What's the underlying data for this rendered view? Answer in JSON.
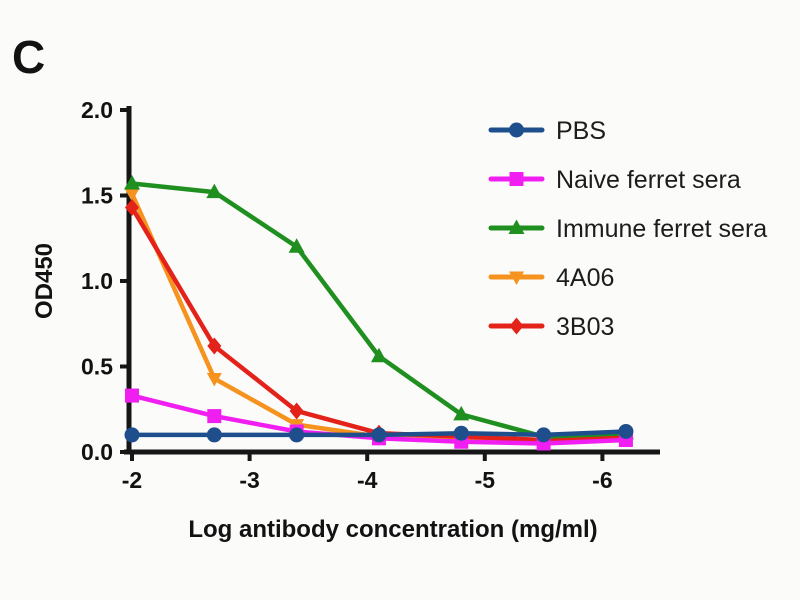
{
  "panel_label": "C",
  "colors": {
    "background": "#fbfbfa",
    "axis": "#161616",
    "text": "#121212"
  },
  "chart_data": {
    "type": "line",
    "title": "",
    "xlabel": "Log antibody concentration (mg/ml)",
    "ylabel": "OD450",
    "x": [
      -2.0,
      -2.7,
      -3.4,
      -4.1,
      -4.8,
      -5.5,
      -6.2
    ],
    "xticks": [
      -2,
      -3,
      -4,
      -5,
      -6
    ],
    "xtick_labels": [
      "-2",
      "-3",
      "-4",
      "-5",
      "-6"
    ],
    "yticks": [
      0.0,
      0.5,
      1.0,
      1.5,
      2.0
    ],
    "ytick_labels": [
      "0.0",
      "0.5",
      "1.0",
      "1.5",
      "2.0"
    ],
    "ylim": [
      0,
      2
    ],
    "xlim": [
      -2,
      -6.5
    ],
    "grid": false,
    "legend_position": "upper-right",
    "series": [
      {
        "name": "PBS",
        "color": "#1e4f8c",
        "marker": "circle",
        "values": [
          0.1,
          0.1,
          0.1,
          0.1,
          0.11,
          0.1,
          0.12
        ]
      },
      {
        "name": "Naive ferret sera",
        "color": "#f11ef1",
        "marker": "square",
        "values": [
          0.33,
          0.21,
          0.12,
          0.08,
          0.06,
          0.05,
          0.07
        ]
      },
      {
        "name": "Immune ferret sera",
        "color": "#1f8f1f",
        "marker": "triangle-up",
        "values": [
          1.57,
          1.52,
          1.2,
          0.56,
          0.22,
          0.09,
          0.11
        ]
      },
      {
        "name": "4A06",
        "color": "#f6921e",
        "marker": "triangle-down",
        "values": [
          1.51,
          0.43,
          0.16,
          0.09,
          0.08,
          0.06,
          0.08
        ]
      },
      {
        "name": "3B03",
        "color": "#e32219",
        "marker": "diamond",
        "values": [
          1.43,
          0.62,
          0.24,
          0.11,
          0.09,
          0.07,
          0.09
        ]
      }
    ]
  }
}
